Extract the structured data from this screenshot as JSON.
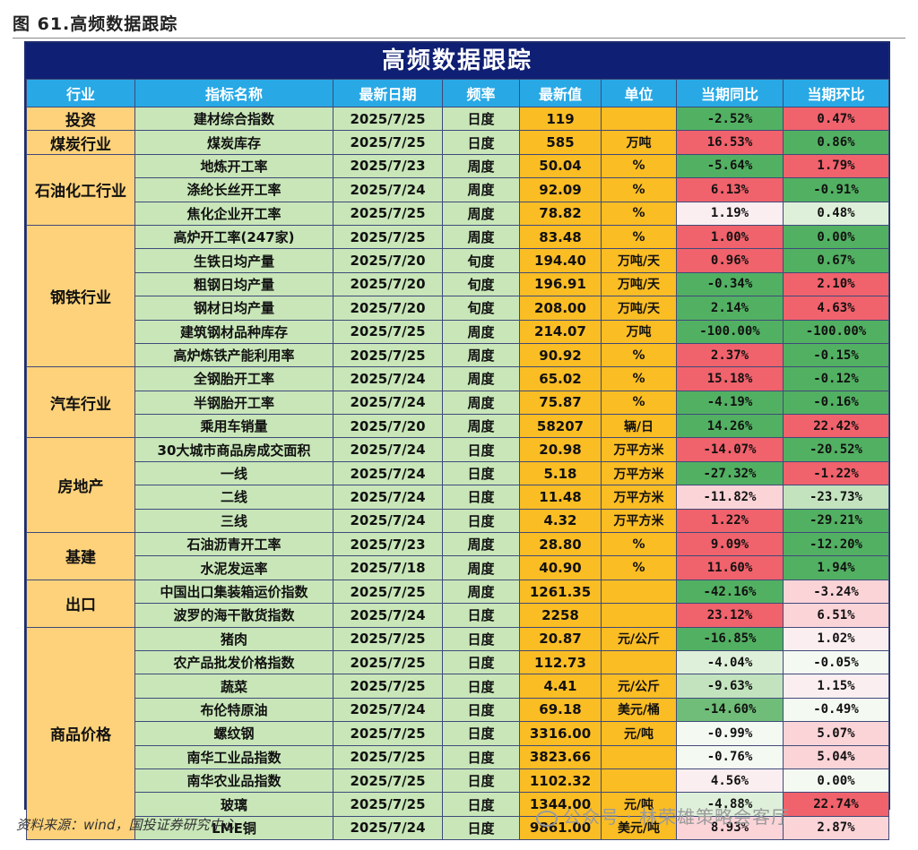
{
  "figure_caption": "图 61.高频数据跟踪",
  "table_title": "高频数据跟踪",
  "headers": [
    "行业",
    "指标名称",
    "最新日期",
    "频率",
    "最新值",
    "单位",
    "当期同比",
    "当期环比"
  ],
  "rows": [
    {
      "industry": "投资",
      "span": 1,
      "name": "建材综合指数",
      "date": "2025/7/25",
      "freq": "日度",
      "value": "119",
      "unit": "",
      "yoy": "-2.52%",
      "yoy_color": "#52b062",
      "mom": "0.47%",
      "mom_color": "#f0626c"
    },
    {
      "industry": "煤炭行业",
      "span": 1,
      "name": "煤炭库存",
      "date": "2025/7/25",
      "freq": "日度",
      "value": "585",
      "unit": "万吨",
      "yoy": "16.53%",
      "yoy_color": "#f0626c",
      "mom": "0.86%",
      "mom_color": "#52b062"
    },
    {
      "industry": "石油化工行业",
      "span": 3,
      "name": "地炼开工率",
      "date": "2025/7/23",
      "freq": "周度",
      "value": "50.04",
      "unit": "%",
      "yoy": "-5.64%",
      "yoy_color": "#52b062",
      "mom": "1.79%",
      "mom_color": "#f0626c"
    },
    {
      "industry": null,
      "span": 0,
      "name": "涤纶长丝开工率",
      "date": "2025/7/24",
      "freq": "周度",
      "value": "92.09",
      "unit": "%",
      "yoy": "6.13%",
      "yoy_color": "#f0626c",
      "mom": "-0.91%",
      "mom_color": "#52b062"
    },
    {
      "industry": null,
      "span": 0,
      "name": "焦化企业开工率",
      "date": "2025/7/25",
      "freq": "周度",
      "value": "78.82",
      "unit": "%",
      "yoy": "1.19%",
      "yoy_color": "#fbeef0",
      "mom": "0.48%",
      "mom_color": "#dff0da"
    },
    {
      "industry": "钢铁行业",
      "span": 6,
      "name": "高炉开工率(247家)",
      "date": "2025/7/25",
      "freq": "周度",
      "value": "83.48",
      "unit": "%",
      "yoy": "1.00%",
      "yoy_color": "#f0626c",
      "mom": "0.00%",
      "mom_color": "#52b062"
    },
    {
      "industry": null,
      "span": 0,
      "name": "生铁日均产量",
      "date": "2025/7/20",
      "freq": "旬度",
      "value": "194.40",
      "unit": "万吨/天",
      "yoy": "0.96%",
      "yoy_color": "#f0626c",
      "mom": "0.67%",
      "mom_color": "#52b062"
    },
    {
      "industry": null,
      "span": 0,
      "name": "粗钢日均产量",
      "date": "2025/7/20",
      "freq": "旬度",
      "value": "196.91",
      "unit": "万吨/天",
      "yoy": "-0.34%",
      "yoy_color": "#52b062",
      "mom": "2.10%",
      "mom_color": "#f0626c"
    },
    {
      "industry": null,
      "span": 0,
      "name": "钢材日均产量",
      "date": "2025/7/20",
      "freq": "旬度",
      "value": "208.00",
      "unit": "万吨/天",
      "yoy": "2.14%",
      "yoy_color": "#52b062",
      "mom": "4.63%",
      "mom_color": "#f0626c"
    },
    {
      "industry": null,
      "span": 0,
      "name": "建筑钢材品种库存",
      "date": "2025/7/25",
      "freq": "周度",
      "value": "214.07",
      "unit": "万吨",
      "yoy": "-100.00%",
      "yoy_color": "#52b062",
      "mom": "-100.00%",
      "mom_color": "#52b062"
    },
    {
      "industry": null,
      "span": 0,
      "name": "高炉炼铁产能利用率",
      "date": "2025/7/25",
      "freq": "周度",
      "value": "90.92",
      "unit": "%",
      "yoy": "2.37%",
      "yoy_color": "#f0626c",
      "mom": "-0.15%",
      "mom_color": "#52b062"
    },
    {
      "industry": "汽车行业",
      "span": 3,
      "name": "全钢胎开工率",
      "date": "2025/7/24",
      "freq": "周度",
      "value": "65.02",
      "unit": "%",
      "yoy": "15.18%",
      "yoy_color": "#f0626c",
      "mom": "-0.12%",
      "mom_color": "#52b062"
    },
    {
      "industry": null,
      "span": 0,
      "name": "半钢胎开工率",
      "date": "2025/7/24",
      "freq": "周度",
      "value": "75.87",
      "unit": "%",
      "yoy": "-4.19%",
      "yoy_color": "#52b062",
      "mom": "-0.16%",
      "mom_color": "#52b062"
    },
    {
      "industry": null,
      "span": 0,
      "name": "乘用车销量",
      "date": "2025/7/20",
      "freq": "周度",
      "value": "58207",
      "unit": "辆/日",
      "yoy": "14.26%",
      "yoy_color": "#52b062",
      "mom": "22.42%",
      "mom_color": "#f0626c"
    },
    {
      "industry": "房地产",
      "span": 4,
      "name": "30大城市商品房成交面积",
      "date": "2025/7/24",
      "freq": "日度",
      "value": "20.98",
      "unit": "万平方米",
      "yoy": "-14.07%",
      "yoy_color": "#f0626c",
      "mom": "-20.52%",
      "mom_color": "#52b062"
    },
    {
      "industry": null,
      "span": 0,
      "name": "一线",
      "date": "2025/7/24",
      "freq": "日度",
      "value": "5.18",
      "unit": "万平方米",
      "yoy": "-27.32%",
      "yoy_color": "#52b062",
      "mom": "-1.22%",
      "mom_color": "#f0626c"
    },
    {
      "industry": null,
      "span": 0,
      "name": "二线",
      "date": "2025/7/24",
      "freq": "日度",
      "value": "11.48",
      "unit": "万平方米",
      "yoy": "-11.82%",
      "yoy_color": "#fbd4d8",
      "mom": "-23.73%",
      "mom_color": "#c3e3bf"
    },
    {
      "industry": null,
      "span": 0,
      "name": "三线",
      "date": "2025/7/24",
      "freq": "日度",
      "value": "4.32",
      "unit": "万平方米",
      "yoy": "1.22%",
      "yoy_color": "#f0626c",
      "mom": "-29.21%",
      "mom_color": "#52b062"
    },
    {
      "industry": "基建",
      "span": 2,
      "name": "石油沥青开工率",
      "date": "2025/7/23",
      "freq": "周度",
      "value": "28.80",
      "unit": "%",
      "yoy": "9.09%",
      "yoy_color": "#f0626c",
      "mom": "-12.20%",
      "mom_color": "#52b062"
    },
    {
      "industry": null,
      "span": 0,
      "name": "水泥发运率",
      "date": "2025/7/18",
      "freq": "周度",
      "value": "40.90",
      "unit": "%",
      "yoy": "11.60%",
      "yoy_color": "#f0626c",
      "mom": "1.94%",
      "mom_color": "#52b062"
    },
    {
      "industry": "出口",
      "span": 2,
      "name": "中国出口集装箱运价指数",
      "date": "2025/7/25",
      "freq": "周度",
      "value": "1261.35",
      "unit": "",
      "yoy": "-42.16%",
      "yoy_color": "#52b062",
      "mom": "-3.24%",
      "mom_color": "#fbd4d8"
    },
    {
      "industry": null,
      "span": 0,
      "name": "波罗的海干散货指数",
      "date": "2025/7/24",
      "freq": "日度",
      "value": "2258",
      "unit": "",
      "yoy": "23.12%",
      "yoy_color": "#f0626c",
      "mom": "6.51%",
      "mom_color": "#fbd4d8"
    },
    {
      "industry": "商品价格",
      "span": 9,
      "name": "猪肉",
      "date": "2025/7/25",
      "freq": "日度",
      "value": "20.87",
      "unit": "元/公斤",
      "yoy": "-16.85%",
      "yoy_color": "#52b062",
      "mom": "1.02%",
      "mom_color": "#fbeef0"
    },
    {
      "industry": null,
      "span": 0,
      "name": "农产品批发价格指数",
      "date": "2025/7/25",
      "freq": "日度",
      "value": "112.73",
      "unit": "",
      "yoy": "-4.04%",
      "yoy_color": "#dff0da",
      "mom": "-0.05%",
      "mom_color": "#f4f9f2"
    },
    {
      "industry": null,
      "span": 0,
      "name": "蔬菜",
      "date": "2025/7/25",
      "freq": "日度",
      "value": "4.41",
      "unit": "元/公斤",
      "yoy": "-9.63%",
      "yoy_color": "#c3e3bf",
      "mom": "1.15%",
      "mom_color": "#fbeef0"
    },
    {
      "industry": null,
      "span": 0,
      "name": "布伦特原油",
      "date": "2025/7/24",
      "freq": "日度",
      "value": "69.18",
      "unit": "美元/桶",
      "yoy": "-14.60%",
      "yoy_color": "#6fbd78",
      "mom": "-0.49%",
      "mom_color": "#f4f9f2"
    },
    {
      "industry": null,
      "span": 0,
      "name": "螺纹钢",
      "date": "2025/7/25",
      "freq": "日度",
      "value": "3316.00",
      "unit": "元/吨",
      "yoy": "-0.99%",
      "yoy_color": "#f4f9f2",
      "mom": "5.07%",
      "mom_color": "#fbd4d8"
    },
    {
      "industry": null,
      "span": 0,
      "name": "南华工业品指数",
      "date": "2025/7/25",
      "freq": "日度",
      "value": "3823.66",
      "unit": "",
      "yoy": "-0.76%",
      "yoy_color": "#f4f9f2",
      "mom": "5.04%",
      "mom_color": "#fbd4d8"
    },
    {
      "industry": null,
      "span": 0,
      "name": "南华农业品指数",
      "date": "2025/7/25",
      "freq": "日度",
      "value": "1102.32",
      "unit": "",
      "yoy": "4.56%",
      "yoy_color": "#fbeef0",
      "mom": "0.00%",
      "mom_color": "#f4f9f2"
    },
    {
      "industry": null,
      "span": 0,
      "name": "玻璃",
      "date": "2025/7/25",
      "freq": "日度",
      "value": "1344.00",
      "unit": "元/吨",
      "yoy": "-4.88%",
      "yoy_color": "#dff0da",
      "mom": "22.74%",
      "mom_color": "#f0626c"
    },
    {
      "industry": null,
      "span": 0,
      "name": "LME铜",
      "date": "2025/7/24",
      "freq": "日度",
      "value": "9861.00",
      "unit": "美元/吨",
      "yoy": "8.93%",
      "yoy_color": "#fbd4d8",
      "mom": "2.87%",
      "mom_color": "#fbd4d8"
    }
  ],
  "source": "资料来源：wind，国投证券研究中心",
  "watermark": "公众号 · 林荣雄策略会客厅"
}
